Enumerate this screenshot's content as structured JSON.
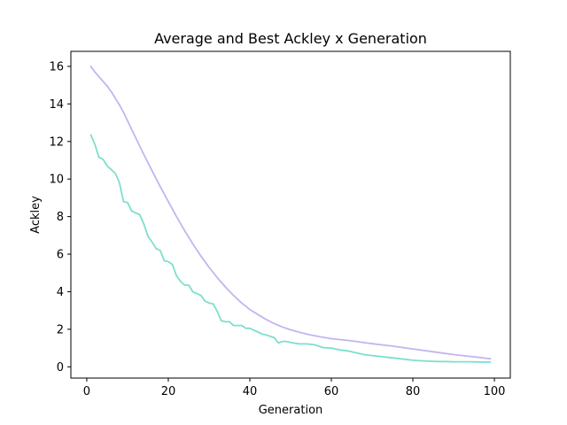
{
  "chart_data": {
    "type": "line",
    "title": "Average and Best Ackley x Generation",
    "xlabel": "Generation",
    "ylabel": "Ackley",
    "xlim": [
      -3.9,
      103.9
    ],
    "ylim": [
      -0.6,
      16.8
    ],
    "xticks": [
      0,
      20,
      40,
      60,
      80,
      100
    ],
    "yticks": [
      0,
      2,
      4,
      6,
      8,
      10,
      12,
      14,
      16
    ],
    "grid": false,
    "legend": "none",
    "series": [
      {
        "color": "#c2b5f2",
        "x": [
          1,
          2,
          3,
          4,
          5,
          6,
          7,
          8,
          9,
          10,
          12,
          14,
          16,
          18,
          20,
          22,
          24,
          26,
          28,
          30,
          32,
          34,
          36,
          38,
          40,
          42,
          44,
          46,
          48,
          50,
          52,
          54,
          56,
          58,
          60,
          65,
          70,
          75,
          80,
          85,
          90,
          95,
          99
        ],
        "y": [
          16.0,
          15.7,
          15.45,
          15.2,
          14.95,
          14.65,
          14.3,
          13.95,
          13.55,
          13.1,
          12.2,
          11.3,
          10.45,
          9.6,
          8.8,
          8.0,
          7.25,
          6.55,
          5.9,
          5.3,
          4.75,
          4.25,
          3.8,
          3.4,
          3.05,
          2.78,
          2.52,
          2.3,
          2.12,
          1.97,
          1.85,
          1.74,
          1.65,
          1.57,
          1.5,
          1.38,
          1.23,
          1.1,
          0.95,
          0.8,
          0.65,
          0.53,
          0.43
        ]
      },
      {
        "color": "#7ddfcc",
        "x": [
          1,
          2,
          3,
          4,
          5,
          6,
          7,
          8,
          9,
          10,
          11,
          12,
          13,
          14,
          15,
          16,
          17,
          18,
          19,
          20,
          21,
          22,
          23,
          24,
          25,
          26,
          27,
          28,
          29,
          30,
          31,
          32,
          33,
          34,
          35,
          36,
          37,
          38,
          39,
          40,
          41,
          42,
          43,
          44,
          45,
          46,
          47,
          48,
          49,
          50,
          52,
          54,
          56,
          58,
          60,
          62,
          64,
          66,
          68,
          70,
          72,
          74,
          76,
          78,
          80,
          82,
          84,
          86,
          88,
          90,
          92,
          94,
          96,
          99
        ],
        "y": [
          12.35,
          11.85,
          11.15,
          11.05,
          10.7,
          10.5,
          10.3,
          9.8,
          8.8,
          8.75,
          8.3,
          8.2,
          8.1,
          7.6,
          6.95,
          6.65,
          6.3,
          6.2,
          5.65,
          5.6,
          5.45,
          4.85,
          4.55,
          4.35,
          4.35,
          4.0,
          3.9,
          3.8,
          3.5,
          3.4,
          3.35,
          2.95,
          2.45,
          2.4,
          2.4,
          2.2,
          2.2,
          2.2,
          2.05,
          2.05,
          1.95,
          1.85,
          1.75,
          1.7,
          1.62,
          1.55,
          1.27,
          1.35,
          1.35,
          1.3,
          1.22,
          1.22,
          1.17,
          1.02,
          1.0,
          0.9,
          0.85,
          0.75,
          0.65,
          0.6,
          0.55,
          0.5,
          0.45,
          0.4,
          0.35,
          0.32,
          0.3,
          0.28,
          0.28,
          0.27,
          0.27,
          0.27,
          0.26,
          0.25
        ]
      }
    ]
  }
}
